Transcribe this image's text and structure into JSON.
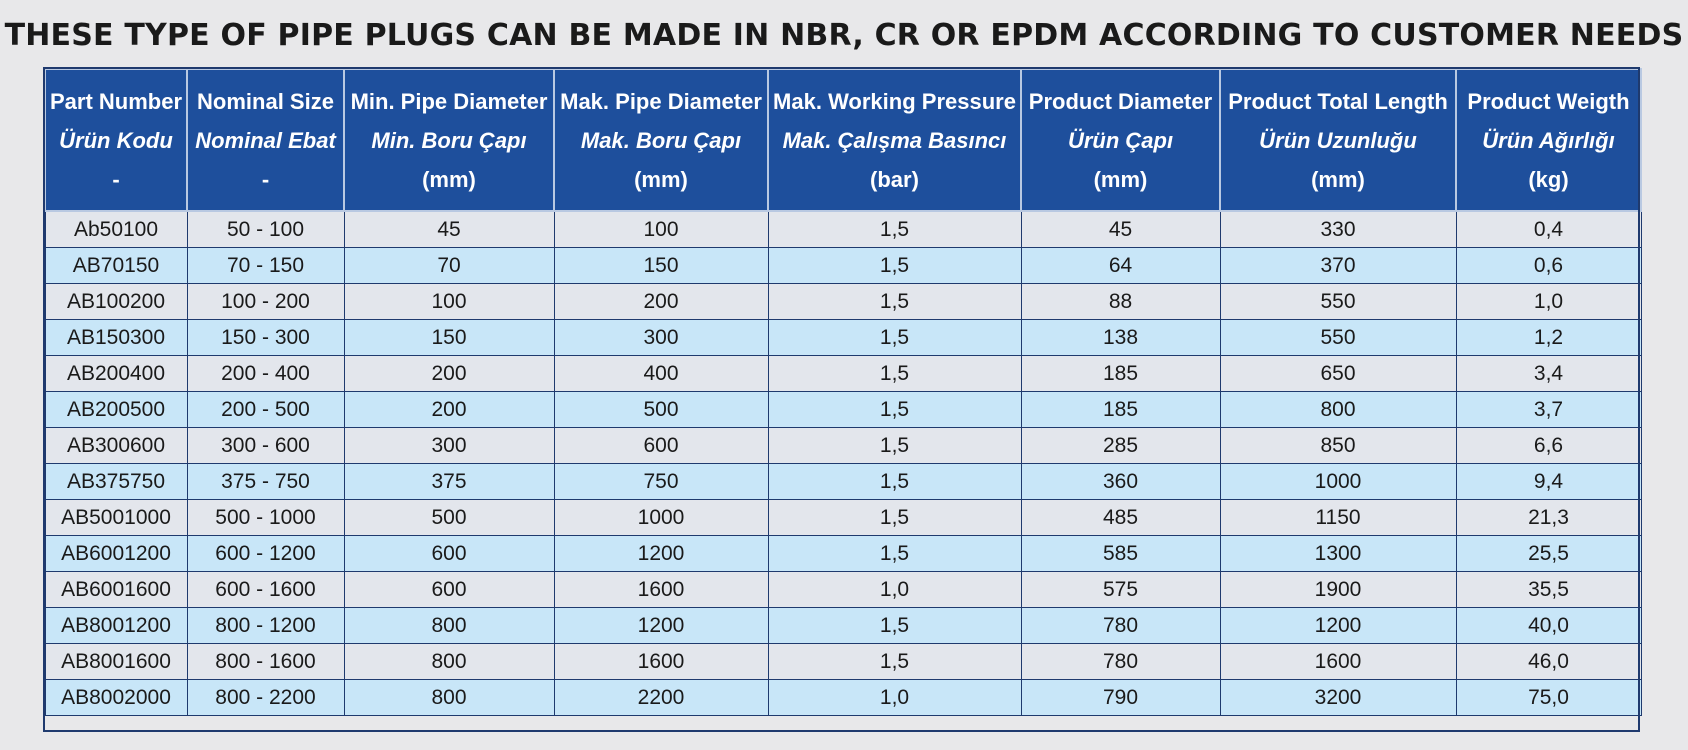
{
  "title": "THESE TYPE OF PIPE PLUGS CAN BE MADE IN NBR, CR OR EPDM ACCORDING TO CUSTOMER NEEDS",
  "columns": [
    {
      "en": "Part Number",
      "tr": "Ürün Kodu",
      "unit": "-"
    },
    {
      "en": "Nominal Size",
      "tr": "Nominal Ebat",
      "unit": "-"
    },
    {
      "en": "Min. Pipe Diameter",
      "tr": "Min. Boru Çapı",
      "unit": "(mm)"
    },
    {
      "en": "Mak. Pipe Diameter",
      "tr": "Mak. Boru Çapı",
      "unit": "(mm)"
    },
    {
      "en": "Mak. Working Pressure",
      "tr": "Mak. Çalışma Basıncı",
      "unit": "(bar)"
    },
    {
      "en": "Product Diameter",
      "tr": "Ürün Çapı",
      "unit": "(mm)"
    },
    {
      "en": "Product Total Length",
      "tr": "Ürün Uzunluğu",
      "unit": "(mm)"
    },
    {
      "en": "Product Weigth",
      "tr": "Ürün Ağırlığı",
      "unit": "(kg)"
    }
  ],
  "rows": [
    [
      "Ab50100",
      "50 - 100",
      "45",
      "100",
      "1,5",
      "45",
      "330",
      "0,4"
    ],
    [
      "AB70150",
      "70 - 150",
      "70",
      "150",
      "1,5",
      "64",
      "370",
      "0,6"
    ],
    [
      "AB100200",
      "100 - 200",
      "100",
      "200",
      "1,5",
      "88",
      "550",
      "1,0"
    ],
    [
      "AB150300",
      "150 - 300",
      "150",
      "300",
      "1,5",
      "138",
      "550",
      "1,2"
    ],
    [
      "AB200400",
      "200 - 400",
      "200",
      "400",
      "1,5",
      "185",
      "650",
      "3,4"
    ],
    [
      "AB200500",
      "200 - 500",
      "200",
      "500",
      "1,5",
      "185",
      "800",
      "3,7"
    ],
    [
      "AB300600",
      "300 - 600",
      "300",
      "600",
      "1,5",
      "285",
      "850",
      "6,6"
    ],
    [
      "AB375750",
      "375 - 750",
      "375",
      "750",
      "1,5",
      "360",
      "1000",
      "9,4"
    ],
    [
      "AB5001000",
      "500 - 1000",
      "500",
      "1000",
      "1,5",
      "485",
      "1150",
      "21,3"
    ],
    [
      "AB6001200",
      "600 - 1200",
      "600",
      "1200",
      "1,5",
      "585",
      "1300",
      "25,5"
    ],
    [
      "AB6001600",
      "600 - 1600",
      "600",
      "1600",
      "1,0",
      "575",
      "1900",
      "35,5"
    ],
    [
      "AB8001200",
      "800 - 1200",
      "800",
      "1200",
      "1,5",
      "780",
      "1200",
      "40,0"
    ],
    [
      "AB8001600",
      "800 - 1600",
      "800",
      "1600",
      "1,5",
      "780",
      "1600",
      "46,0"
    ],
    [
      "AB8002000",
      "800 - 2200",
      "800",
      "2200",
      "1,0",
      "790",
      "3200",
      "75,0"
    ]
  ],
  "colors": {
    "header_bg": "#1e4f9c",
    "header_text": "#ffffff",
    "row_odd": "#e3e6ec",
    "row_even": "#c8e6f8",
    "grid_line": "#1f3a6e"
  }
}
